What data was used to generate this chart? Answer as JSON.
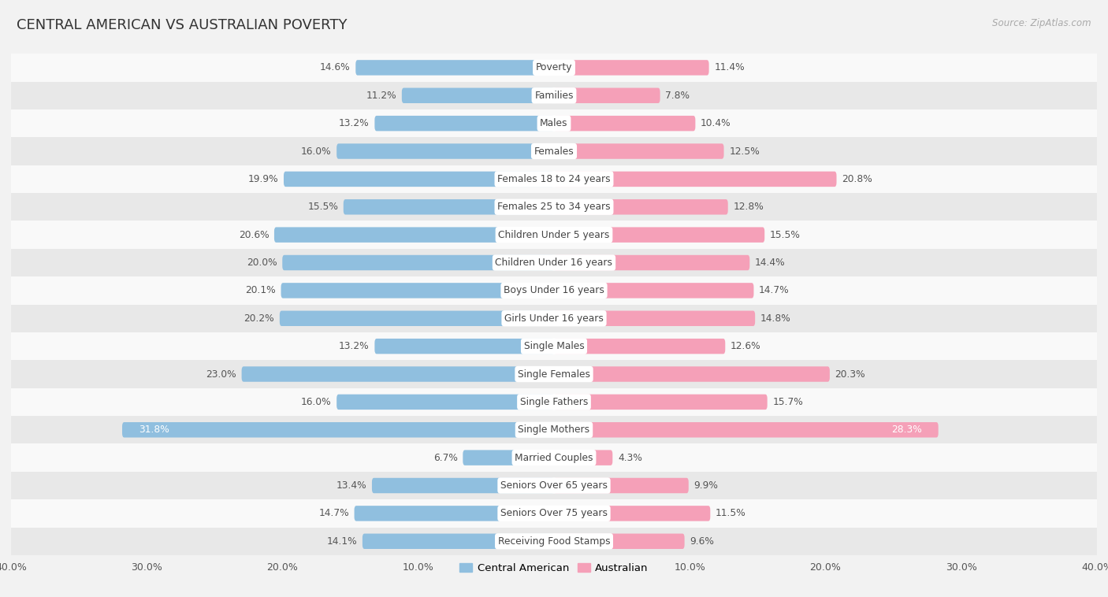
{
  "title": "CENTRAL AMERICAN VS AUSTRALIAN POVERTY",
  "source": "Source: ZipAtlas.com",
  "categories": [
    "Poverty",
    "Families",
    "Males",
    "Females",
    "Females 18 to 24 years",
    "Females 25 to 34 years",
    "Children Under 5 years",
    "Children Under 16 years",
    "Boys Under 16 years",
    "Girls Under 16 years",
    "Single Males",
    "Single Females",
    "Single Fathers",
    "Single Mothers",
    "Married Couples",
    "Seniors Over 65 years",
    "Seniors Over 75 years",
    "Receiving Food Stamps"
  ],
  "central_american": [
    14.6,
    11.2,
    13.2,
    16.0,
    19.9,
    15.5,
    20.6,
    20.0,
    20.1,
    20.2,
    13.2,
    23.0,
    16.0,
    31.8,
    6.7,
    13.4,
    14.7,
    14.1
  ],
  "australian": [
    11.4,
    7.8,
    10.4,
    12.5,
    20.8,
    12.8,
    15.5,
    14.4,
    14.7,
    14.8,
    12.6,
    20.3,
    15.7,
    28.3,
    4.3,
    9.9,
    11.5,
    9.6
  ],
  "blue_color": "#90bfdf",
  "pink_color": "#f5a0b8",
  "bg_color": "#f2f2f2",
  "row_color_light": "#f9f9f9",
  "row_color_dark": "#e8e8e8",
  "axis_limit": 40.0,
  "label_fontsize": 9.0,
  "title_fontsize": 13,
  "bar_height": 0.52,
  "value_label_fontsize": 8.8,
  "cat_label_fontsize": 8.8,
  "single_mothers_label_color": "#ffffff"
}
